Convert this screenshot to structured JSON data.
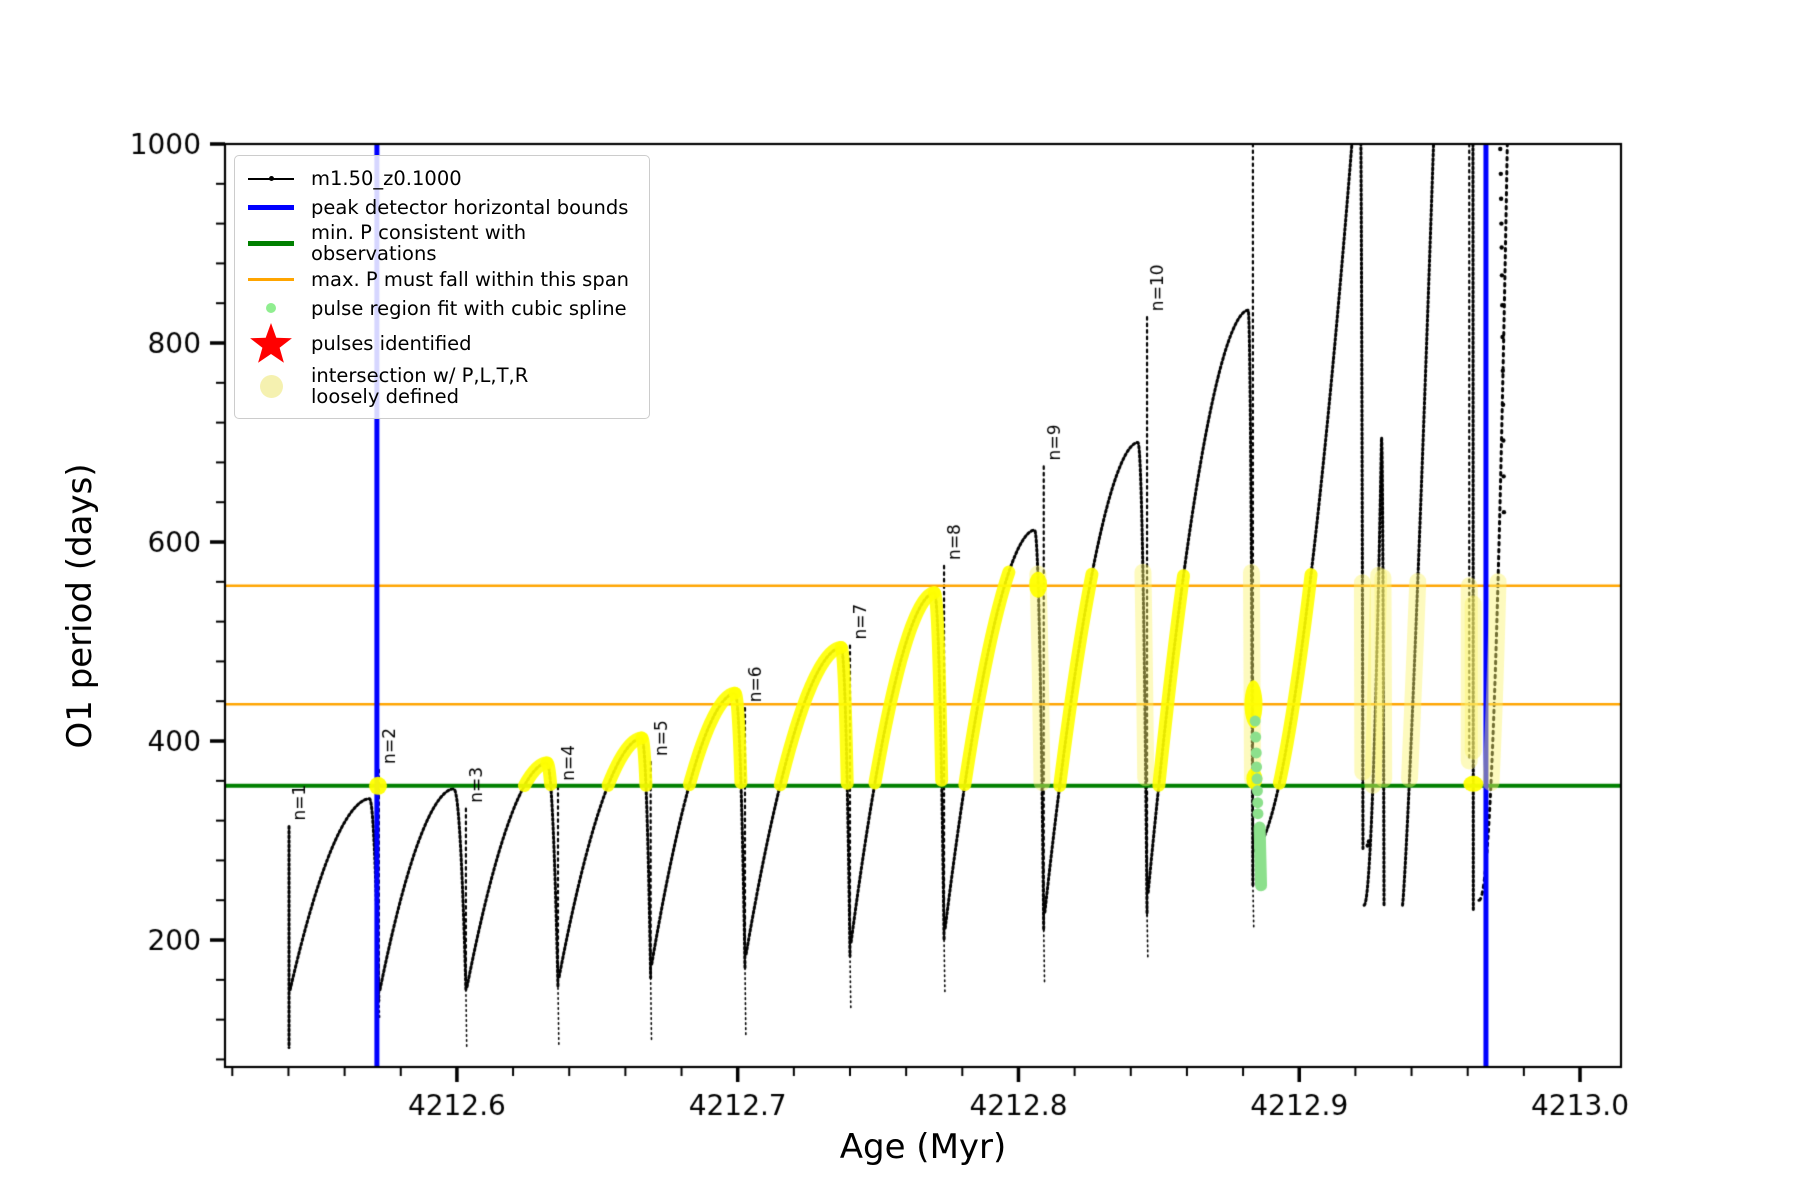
{
  "legend": {
    "items": [
      {
        "marker": "line-dot",
        "color": "#000000",
        "label": "m1.50_z0.1000"
      },
      {
        "marker": "thick-line",
        "color": "#0000ff",
        "label": "peak detector horizontal bounds"
      },
      {
        "marker": "thick-line",
        "color": "#008000",
        "label": "min. P consistent with observations"
      },
      {
        "marker": "line",
        "color": "#ffa500",
        "label": "max. P must fall within this span"
      },
      {
        "marker": "dot-small",
        "color": "#90ee90",
        "label": "pulse region fit with cubic spline"
      },
      {
        "marker": "star",
        "color": "#ff0000",
        "label": "pulses identified"
      },
      {
        "marker": "dot-large",
        "color": "#f5f1b0",
        "label": "intersection w/ P,L,T,R\nloosely defined"
      }
    ]
  },
  "chart_data": {
    "type": "line",
    "series_name": "m1.50_z0.1000",
    "xlabel": "Age (Myr)",
    "ylabel": "O1 period (days)",
    "xlim": [
      4212.5174,
      4213.0146
    ],
    "ylim": [
      72.4,
      1000
    ],
    "x_ticks": [
      {
        "v": 4212.6,
        "label": "4212.6"
      },
      {
        "v": 4212.7,
        "label": "4212.7"
      },
      {
        "v": 4212.8,
        "label": "4212.8"
      },
      {
        "v": 4212.9,
        "label": "4212.9"
      },
      {
        "v": 4213.0,
        "label": "4213.0"
      }
    ],
    "y_ticks": [
      {
        "v": 200,
        "label": "200"
      },
      {
        "v": 400,
        "label": "400"
      },
      {
        "v": 600,
        "label": "600"
      },
      {
        "v": 800,
        "label": "800"
      },
      {
        "v": 1000,
        "label": "1000"
      }
    ],
    "x_minor_step": 0.02,
    "y_minor_step": 40,
    "hlines": [
      {
        "name": "min-P-consistent-with-observations",
        "v": 355,
        "color": "#008000",
        "lw": 4
      },
      {
        "name": "max-P-span-lower",
        "v": 437,
        "color": "#ffa500",
        "lw": 2.5
      },
      {
        "name": "max-P-span-upper",
        "v": 556,
        "color": "#ffa500",
        "lw": 2.5
      }
    ],
    "vlines": [
      {
        "name": "peak-detector-left-bound",
        "a": 4212.5715,
        "color": "#0000ff",
        "lw": 5
      },
      {
        "name": "peak-detector-right-bound",
        "a": 4212.9665,
        "color": "#0000ff",
        "lw": 5
      }
    ],
    "yellow_band": [
      355,
      556
    ],
    "cycles": [
      {
        "label": "n=1",
        "spike": true,
        "drop": 4212.5402,
        "needle": 314,
        "bottom": 92
      },
      {
        "label": "n=2",
        "start": 4212.5406,
        "sv": 150,
        "pa": 4212.5688,
        "peak": 342,
        "drop": 4212.5722,
        "bottom": 139,
        "tail": 120,
        "needle": 371
      },
      {
        "label": "n=3",
        "start": 4212.5726,
        "sv": 150,
        "pa": 4212.5988,
        "peak": 352,
        "drop": 4212.6032,
        "bottom": 150,
        "tail": 90,
        "needle": 332
      },
      {
        "label": "n=4",
        "start": 4212.6036,
        "sv": 153,
        "pa": 4212.632,
        "peak": 378,
        "drop": 4212.636,
        "bottom": 152,
        "tail": 95,
        "needle": 354
      },
      {
        "label": "n=5",
        "start": 4212.6364,
        "sv": 163,
        "pa": 4212.6658,
        "peak": 403,
        "drop": 4212.669,
        "bottom": 162,
        "tail": 100,
        "needle": 379
      },
      {
        "label": "n=6",
        "start": 4212.6694,
        "sv": 176,
        "pa": 4212.699,
        "peak": 448,
        "drop": 4212.7026,
        "bottom": 172,
        "tail": 105,
        "needle": 433
      },
      {
        "label": "n=7",
        "start": 4212.703,
        "sv": 186,
        "pa": 4212.7368,
        "peak": 494,
        "drop": 4212.74,
        "bottom": 184,
        "tail": 130,
        "needle": 496
      },
      {
        "label": "n=8",
        "start": 4212.7404,
        "sv": 198,
        "pa": 4212.77,
        "peak": 549,
        "drop": 4212.7735,
        "bottom": 200,
        "tail": 148,
        "needle": 576
      },
      {
        "label": "n=9",
        "start": 4212.7739,
        "sv": 212,
        "pa": 4212.8057,
        "peak": 612,
        "drop": 4212.809,
        "bottom": 210,
        "tail": 155,
        "needle": 676,
        "fall_pale": true
      },
      {
        "label": "n=10",
        "start": 4212.8094,
        "sv": 228,
        "pa": 4212.8425,
        "peak": 700,
        "drop": 4212.8458,
        "bottom": 225,
        "tail": 180,
        "needle": 826,
        "fall_pale": true
      },
      {
        "start": 4212.8462,
        "sv": 248,
        "pa": 4212.8818,
        "peak": 833,
        "drop": 4212.8835,
        "bottom": 255,
        "tail": 212,
        "needle": 1005,
        "fall_pale": true
      },
      {
        "start": 4212.8839,
        "sv": 290,
        "pa": 4212.9215,
        "peak": 1100,
        "drop": 4212.9227,
        "bottom": 292,
        "rise_mode": "powt",
        "rise_exp": 1.74,
        "fall_pale": true
      },
      {
        "start": 4212.9231,
        "sv": 235,
        "pa": 4212.9293,
        "peak": 705,
        "drop": 4212.9302,
        "bottom": 235,
        "rise_mode": "powt",
        "rise_exp": 2.0,
        "rise_pale": true,
        "fall_pale": true
      },
      {
        "start": 4212.9368,
        "sv": 235,
        "pa": 4212.96,
        "peak": 2100,
        "drop": 4212.962,
        "bottom": 230,
        "rise_mode": "powt",
        "rise_exp": 1.2,
        "fall_exp": 8,
        "rise_pale": true,
        "fall_pale": true
      },
      {
        "start": 4212.964,
        "sv": 240,
        "pa": 4212.981,
        "peak": 2600,
        "drop": 4212.9812,
        "bottom": 2590,
        "rise_mode": "powt",
        "rise_exp": 2.18,
        "rise_pale": true,
        "rise_dotted": true
      }
    ],
    "echo_falls": [
      {
        "drop": 4212.96055,
        "top": 1000,
        "bottom": 380
      }
    ],
    "spline_dots": [
      [
        4212.8843,
        420
      ],
      [
        4212.8845,
        404
      ],
      [
        4212.8847,
        388
      ],
      [
        4212.8848,
        374
      ],
      [
        4212.885,
        362
      ],
      [
        4212.8851,
        350
      ],
      [
        4212.8852,
        338
      ],
      [
        4212.8853,
        327
      ]
    ],
    "spline_streak": {
      "a1": 4212.8859,
      "v1": 313,
      "a2": 4212.8864,
      "v2": 255
    },
    "spline_color": "#8ce08c",
    "blobs": [
      [
        4212.5719,
        355,
        9,
        9
      ],
      [
        4212.807,
        557,
        9,
        13
      ],
      [
        4212.8837,
        437,
        9,
        24
      ],
      [
        4212.884,
        362,
        8,
        11
      ],
      [
        4212.962,
        357,
        10,
        8
      ]
    ],
    "scatter": [
      [
        4212.9716,
        995
      ],
      [
        4212.9718,
        970
      ],
      [
        4212.9719,
        945
      ],
      [
        4212.972,
        920
      ],
      [
        4212.9721,
        896
      ],
      [
        4212.9722,
        868
      ],
      [
        4212.9723,
        838
      ],
      [
        4212.9724,
        806
      ],
      [
        4212.9725,
        772
      ],
      [
        4212.9726,
        738
      ],
      [
        4212.9727,
        702
      ],
      [
        4212.9728,
        666
      ],
      [
        4212.9729,
        630
      ],
      [
        4212.9244,
        295
      ],
      [
        4212.9248,
        299
      ]
    ],
    "colors": {
      "curve": "#000000",
      "bright_yellow": "#ffff00",
      "pale_yellow": "rgba(250,245,110,0.45)",
      "spline_green": "#8ce08c",
      "blue": "#0000ff",
      "green": "#008000",
      "orange": "#ffa500"
    }
  }
}
